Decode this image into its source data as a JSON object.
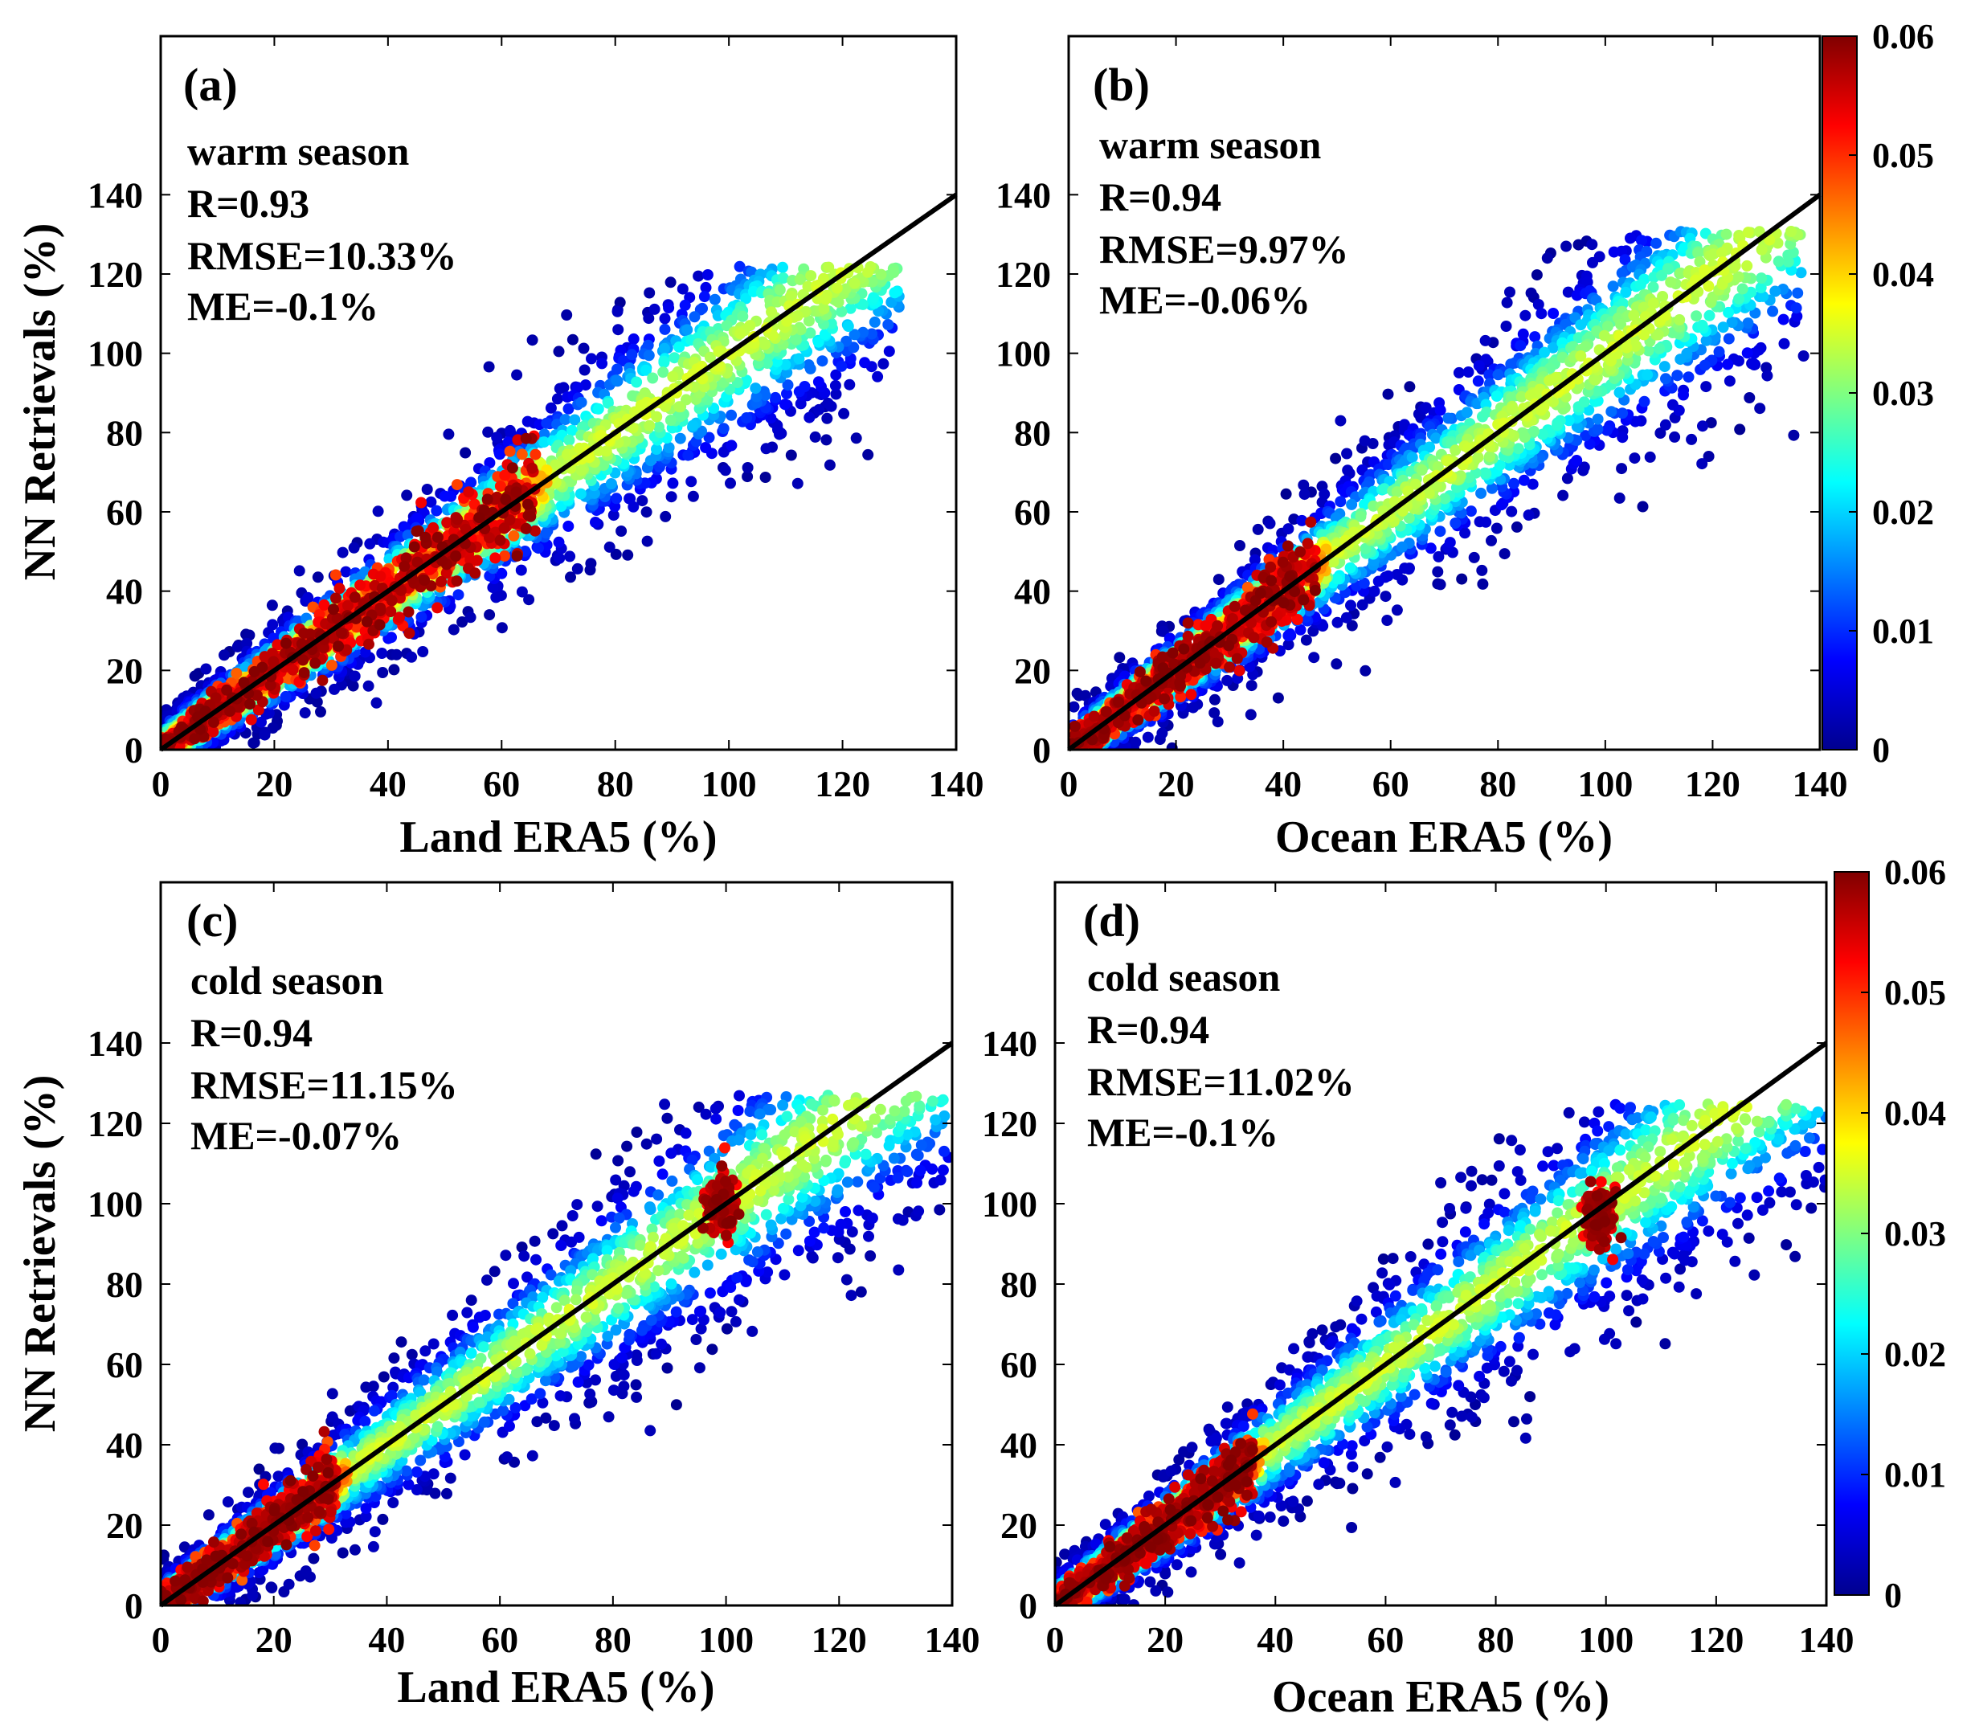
{
  "figure": {
    "type": "scatter-density",
    "colormap": [
      "#00008f",
      "#0000ff",
      "#0080ff",
      "#00ffff",
      "#80ff80",
      "#ffff00",
      "#ff8000",
      "#ff0000",
      "#800000"
    ]
  },
  "chart_data": [
    {
      "type": "scatter",
      "panel": "(a)",
      "season": "warm season",
      "stats": {
        "r": "R=0.93",
        "rmse": "RMSE=10.33%",
        "me": "ME=-0.1%"
      },
      "xlabel": "Land ERA5 (%)",
      "ylabel": "NN Retrievals (%)",
      "xlim": [
        0,
        140
      ],
      "ylim": [
        0,
        180
      ],
      "xticks": [
        0,
        20,
        40,
        60,
        80,
        100,
        120,
        140
      ],
      "yticks": [
        0,
        20,
        40,
        60,
        80,
        100,
        120,
        140
      ],
      "reference_line": {
        "x": [
          0,
          140
        ],
        "y": [
          0,
          140
        ]
      },
      "density_core": [
        [
          0,
          0
        ],
        [
          20,
          20
        ],
        [
          40,
          40
        ],
        [
          60,
          60
        ]
      ],
      "data_extent": {
        "x": [
          0,
          130
        ],
        "y": [
          0,
          122
        ]
      },
      "hotspot": null,
      "seed": 11
    },
    {
      "type": "scatter",
      "panel": "(b)",
      "season": "warm season",
      "stats": {
        "r": "R=0.94",
        "rmse": "RMSE=9.97%",
        "me": "ME=-0.06%"
      },
      "xlabel": "Ocean ERA5 (%)",
      "ylabel": "",
      "xlim": [
        0,
        140
      ],
      "ylim": [
        0,
        180
      ],
      "xticks": [
        0,
        20,
        40,
        60,
        80,
        100,
        120,
        140
      ],
      "yticks": [
        0,
        20,
        40,
        60,
        80,
        100,
        120,
        140
      ],
      "reference_line": {
        "x": [
          0,
          140
        ],
        "y": [
          0,
          140
        ]
      },
      "density_core": [
        [
          0,
          0
        ],
        [
          20,
          20
        ],
        [
          40,
          40
        ]
      ],
      "data_extent": {
        "x": [
          0,
          137
        ],
        "y": [
          0,
          131
        ]
      },
      "hotspot": null,
      "seed": 23
    },
    {
      "type": "scatter",
      "panel": "(c)",
      "season": "cold season",
      "stats": {
        "r": "R=0.94",
        "rmse": "RMSE=11.15%",
        "me": "ME=-0.07%"
      },
      "xlabel": "Land ERA5 (%)",
      "ylabel": "NN Retrievals (%)",
      "xlim": [
        0,
        140
      ],
      "ylim": [
        0,
        180
      ],
      "xticks": [
        0,
        20,
        40,
        60,
        80,
        100,
        120,
        140
      ],
      "yticks": [
        0,
        20,
        40,
        60,
        80,
        100,
        120,
        140
      ],
      "reference_line": {
        "x": [
          0,
          140
        ],
        "y": [
          0,
          140
        ]
      },
      "density_core": [
        [
          0,
          0
        ],
        [
          10,
          10
        ],
        [
          25,
          25
        ]
      ],
      "data_extent": {
        "x": [
          0,
          140
        ],
        "y": [
          0,
          127
        ]
      },
      "hotspot": {
        "x": 99,
        "y": 100
      },
      "seed": 37
    },
    {
      "type": "scatter",
      "panel": "(d)",
      "season": "cold season",
      "stats": {
        "r": "R=0.94",
        "rmse": "RMSE=11.02%",
        "me": "ME=-0.1%"
      },
      "xlabel": "Ocean ERA5 (%)",
      "ylabel": "",
      "xlim": [
        0,
        140
      ],
      "ylim": [
        0,
        180
      ],
      "xticks": [
        0,
        20,
        40,
        60,
        80,
        100,
        120,
        140
      ],
      "yticks": [
        0,
        20,
        40,
        60,
        80,
        100,
        120,
        140
      ],
      "reference_line": {
        "x": [
          0,
          140
        ],
        "y": [
          0,
          140
        ]
      },
      "density_core": [
        [
          0,
          0
        ],
        [
          15,
          15
        ],
        [
          30,
          30
        ]
      ],
      "data_extent": {
        "x": [
          0,
          140
        ],
        "y": [
          0,
          125
        ]
      },
      "hotspot": {
        "x": 99,
        "y": 97
      },
      "seed": 53
    }
  ],
  "colorbars": [
    {
      "range": [
        0,
        0.06
      ],
      "ticks": [
        "0",
        "0.01",
        "0.02",
        "0.03",
        "0.04",
        "0.05",
        "0.06"
      ]
    },
    {
      "range": [
        0,
        0.06
      ],
      "ticks": [
        "0",
        "0.01",
        "0.02",
        "0.03",
        "0.04",
        "0.05",
        "0.06"
      ]
    }
  ]
}
